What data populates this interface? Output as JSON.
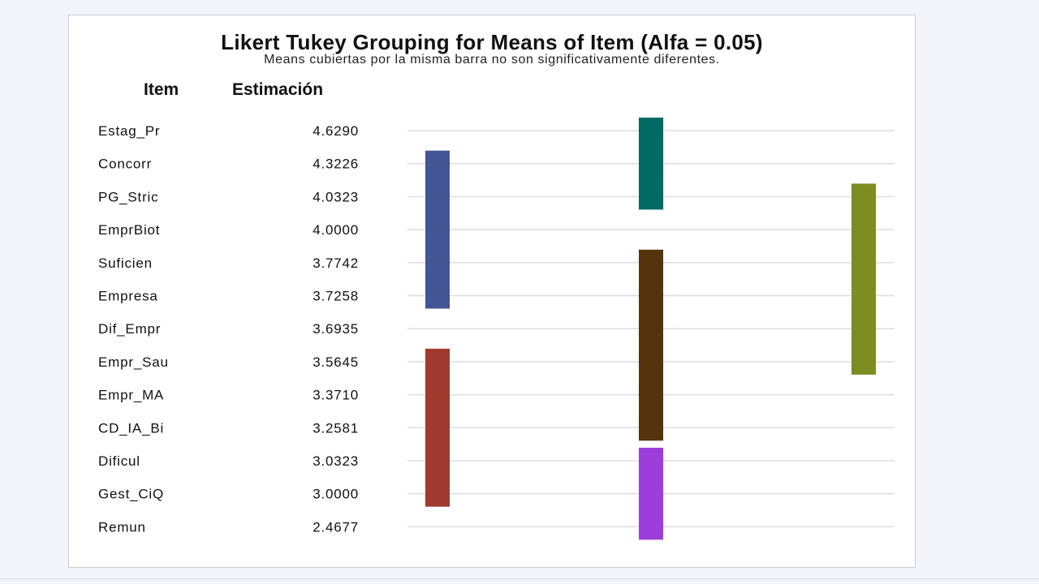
{
  "chart_data": {
    "type": "table",
    "title": "Likert Tukey Grouping for Means of Item (Alfa = 0.05)",
    "subtitle": "Means cubiertas por la misma barra no son significativamente diferentes.",
    "columns": [
      "Item",
      "Estimación"
    ],
    "rows": [
      {
        "item": "Estag_Pr",
        "estimate": "4.6290"
      },
      {
        "item": "Concorr",
        "estimate": "4.3226"
      },
      {
        "item": "PG_Stric",
        "estimate": "4.0323"
      },
      {
        "item": "EmprBiot",
        "estimate": "4.0000"
      },
      {
        "item": "Suficien",
        "estimate": "3.7742"
      },
      {
        "item": "Empresa",
        "estimate": "3.7258"
      },
      {
        "item": "Dif_Empr",
        "estimate": "3.6935"
      },
      {
        "item": "Empr_Sau",
        "estimate": "3.5645"
      },
      {
        "item": "Empr_MA",
        "estimate": "3.3710"
      },
      {
        "item": "CD_IA_Bi",
        "estimate": "3.2581"
      },
      {
        "item": "Dificul",
        "estimate": "3.0323"
      },
      {
        "item": "Gest_CiQ",
        "estimate": "3.0000"
      },
      {
        "item": "Remun",
        "estimate": "2.4677"
      }
    ],
    "groups": [
      {
        "column": 1,
        "start_row": 1,
        "end_row": 5,
        "color": "#455494"
      },
      {
        "column": 1,
        "start_row": 7,
        "end_row": 11,
        "color": "#9e3a2e"
      },
      {
        "column": 2,
        "start_row": 0,
        "end_row": 2,
        "color": "#016a62"
      },
      {
        "column": 2,
        "start_row": 4,
        "end_row": 9,
        "color": "#55330c"
      },
      {
        "column": 2,
        "start_row": 10,
        "end_row": 12,
        "color": "#9d3ddb"
      },
      {
        "column": 3,
        "start_row": 2,
        "end_row": 7,
        "color": "#7e8d22"
      }
    ],
    "grid": true
  }
}
